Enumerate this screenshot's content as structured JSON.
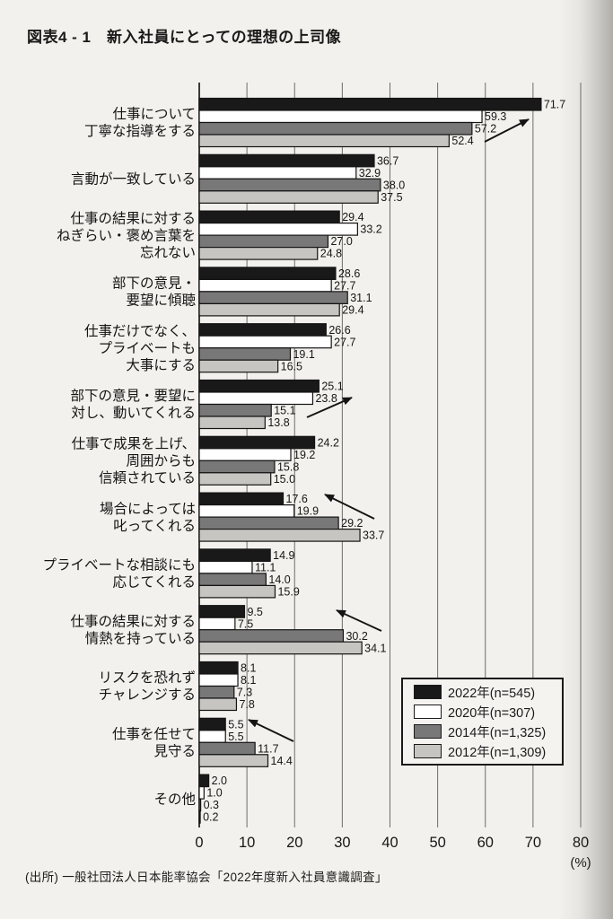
{
  "title": "図表4 - 1　新入社員にとっての理想の上司像",
  "source": "(出所) 一般社団法人日本能率協会「2022年度新入社員意識調査」",
  "chart_data": {
    "type": "bar",
    "orientation": "horizontal",
    "title": "図表4 - 1　新入社員にとっての理想の上司像",
    "xlabel": "(%)",
    "xlim": [
      0,
      80
    ],
    "xticks": [
      0,
      10,
      20,
      30,
      40,
      50,
      60,
      70,
      80
    ],
    "grid": true,
    "legend_position": "lower right",
    "categories": [
      [
        "仕事について",
        "丁寧な指導をする"
      ],
      [
        "言動が一致している"
      ],
      [
        "仕事の結果に対する",
        "ねぎらい・褒め言葉を",
        "忘れない"
      ],
      [
        "部下の意見・",
        "要望に傾聴"
      ],
      [
        "仕事だけでなく、",
        "プライベートも",
        "大事にする"
      ],
      [
        "部下の意見・要望に",
        "対し、動いてくれる"
      ],
      [
        "仕事で成果を上げ、",
        "周囲からも",
        "信頼されている"
      ],
      [
        "場合によっては",
        "叱ってくれる"
      ],
      [
        "プライベートな相談にも",
        "応じてくれる"
      ],
      [
        "仕事の結果に対する",
        "情熱を持っている"
      ],
      [
        "リスクを恐れず",
        "チャレンジする"
      ],
      [
        "仕事を任せて",
        "見守る"
      ],
      [
        "その他"
      ]
    ],
    "series": [
      {
        "name": "2022年(n=545)",
        "color": "#191919",
        "values": [
          71.7,
          36.7,
          29.4,
          28.6,
          26.6,
          25.1,
          24.2,
          17.6,
          14.9,
          9.5,
          8.1,
          5.5,
          2.0
        ]
      },
      {
        "name": "2020年(n=307)",
        "color": "#ffffff",
        "values": [
          59.3,
          32.9,
          33.2,
          27.7,
          27.7,
          23.8,
          19.2,
          19.9,
          11.1,
          7.5,
          8.1,
          5.5,
          1.0
        ]
      },
      {
        "name": "2014年(n=1,325)",
        "color": "#787878",
        "values": [
          57.2,
          38.0,
          27.0,
          31.1,
          19.1,
          15.1,
          15.8,
          29.2,
          14.0,
          30.2,
          7.3,
          11.7,
          0.3
        ]
      },
      {
        "name": "2012年(n=1,309)",
        "color": "#c6c5c2",
        "values": [
          52.4,
          37.5,
          24.8,
          29.4,
          16.5,
          13.8,
          15.0,
          33.7,
          15.9,
          34.1,
          7.8,
          14.4,
          0.2
        ]
      }
    ],
    "annotations": [
      {
        "type": "arrow",
        "from": [
          540,
          158
        ],
        "to": [
          589,
          133
        ]
      },
      {
        "type": "arrow",
        "from": [
          342,
          465
        ],
        "to": [
          392,
          443
        ]
      },
      {
        "type": "arrow",
        "from": [
          417,
          578
        ],
        "to": [
          362,
          551
        ]
      },
      {
        "type": "arrow",
        "from": [
          425,
          703
        ],
        "to": [
          375,
          680
        ]
      },
      {
        "type": "arrow",
        "from": [
          327,
          826
        ],
        "to": [
          277,
          802
        ]
      }
    ]
  }
}
